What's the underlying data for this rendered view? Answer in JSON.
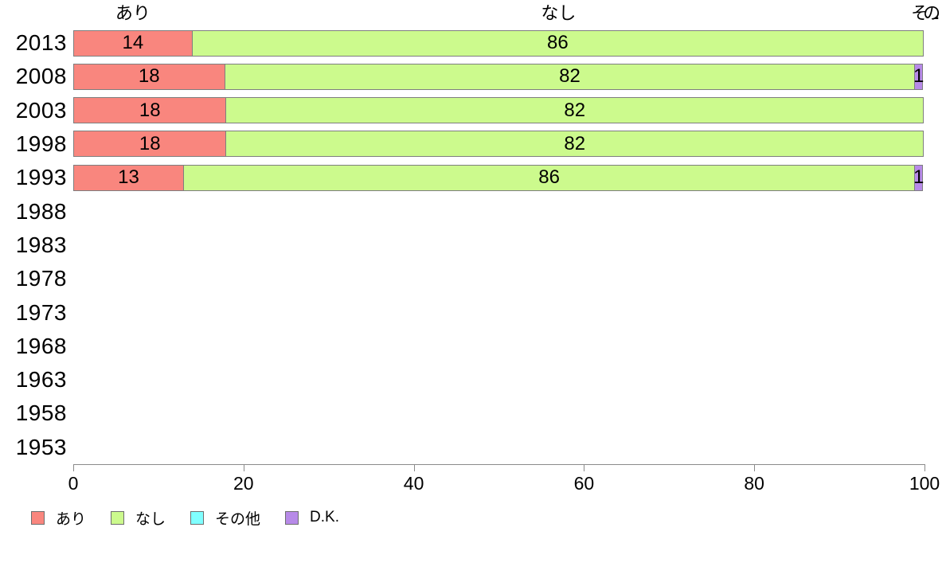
{
  "chart_data": {
    "type": "bar",
    "orientation": "horizontal",
    "stacked": true,
    "title": "",
    "xlabel": "",
    "ylabel": "",
    "xlim": [
      0,
      100
    ],
    "x_ticks": [
      0,
      20,
      40,
      60,
      80,
      100
    ],
    "grid": false,
    "legend_position": "bottom-left",
    "categories": [
      "2013",
      "2008",
      "2003",
      "1998",
      "1993",
      "1988",
      "1983",
      "1978",
      "1973",
      "1968",
      "1963",
      "1958",
      "1953"
    ],
    "series": [
      {
        "name": "あり",
        "color": "#F9867E",
        "values": [
          14,
          18,
          18,
          18,
          13,
          null,
          null,
          null,
          null,
          null,
          null,
          null,
          null
        ]
      },
      {
        "name": "なし",
        "color": "#CCFA8D",
        "values": [
          86,
          82,
          82,
          82,
          86,
          null,
          null,
          null,
          null,
          null,
          null,
          null,
          null
        ]
      },
      {
        "name": "その他",
        "color": "#80FFFF",
        "values": [
          null,
          null,
          null,
          null,
          null,
          null,
          null,
          null,
          null,
          null,
          null,
          null,
          null
        ]
      },
      {
        "name": "D.K.",
        "color": "#B78AE8",
        "values": [
          null,
          1,
          null,
          null,
          1,
          null,
          null,
          null,
          null,
          null,
          null,
          null,
          null
        ]
      }
    ],
    "top_labels": [
      {
        "text": "あり",
        "x_percent": 7,
        "clipped": false
      },
      {
        "text": "なし",
        "x_percent": 57,
        "clipped": false
      },
      {
        "text": "その...",
        "x_percent": 99.7,
        "clipped": true
      }
    ]
  },
  "colors": {
    "background": "#FFFFFF",
    "axis": "#8A8A8A",
    "bar_border": "#7E7E7E",
    "text": "#000000"
  }
}
